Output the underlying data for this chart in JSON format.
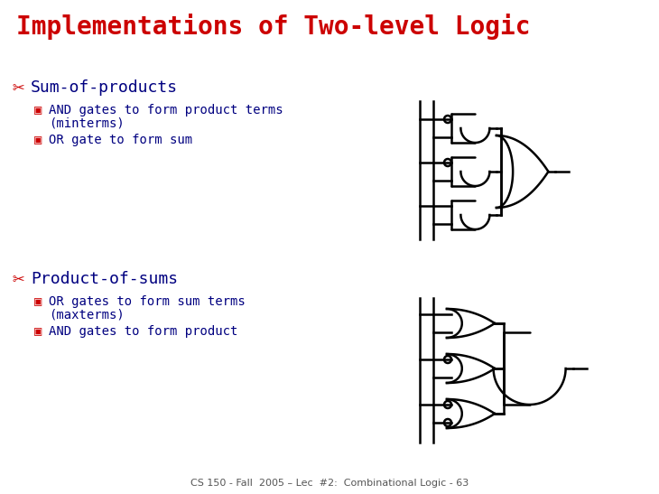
{
  "title": "Implementations of Two-level Logic",
  "title_color": "#cc0000",
  "title_fontsize": 20,
  "title_font": "monospace",
  "bg_color": "#ffffff",
  "text_color_red": "#cc0000",
  "text_color_blue": "#000080",
  "section1_header": "Sum-of-products",
  "section1_bullet1_line1": "AND gates to form product terms",
  "section1_bullet1_line2": "(minterms)",
  "section1_bullet2": "OR gate to form sum",
  "section2_header": "Product-of-sums",
  "section2_bullet1_line1": "OR gates to form sum terms",
  "section2_bullet1_line2": "(maxterms)",
  "section2_bullet2": "AND gates to form product",
  "footer": "CS 150 - Fall  2005 – Lec  #2:  Combinational Logic - 63",
  "footer_color": "#555555",
  "footer_fontsize": 8,
  "gate_color": "#000000",
  "gate_lw": 1.8,
  "header_fontsize": 13,
  "bullet_fontsize": 10
}
